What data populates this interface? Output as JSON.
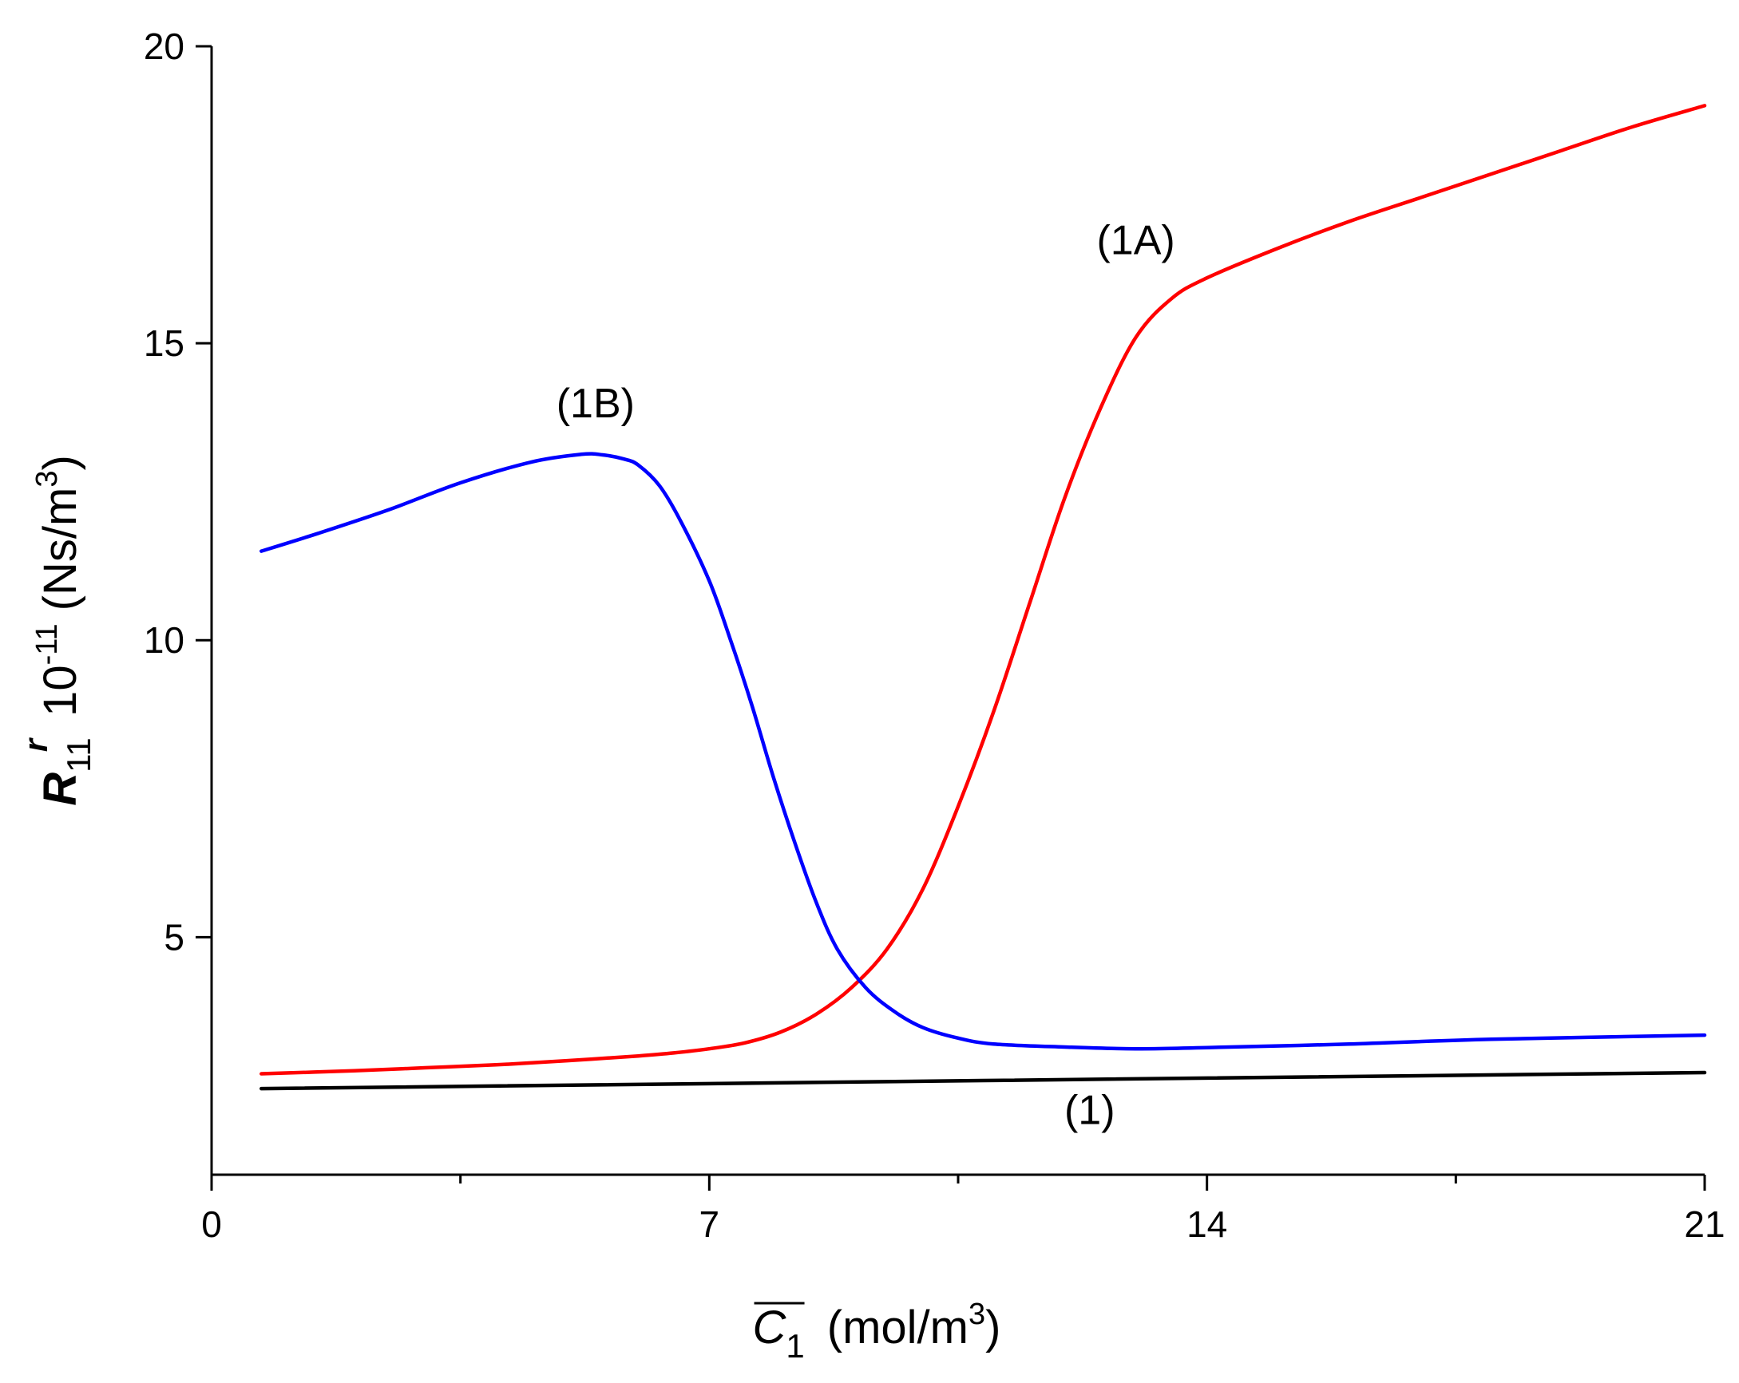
{
  "chart_data": {
    "type": "line",
    "title": "",
    "xlabel": {
      "symbol": "C",
      "subscript": "1",
      "unit_prefix": "(mol/m",
      "unit_power": "3",
      "unit_suffix": ")"
    },
    "ylabel": {
      "symbol": "R",
      "subscript": "11",
      "superscript": "r",
      "factor_base": "10",
      "factor_exp": "-11",
      "unit_prefix": "(Ns/m",
      "unit_power": "3",
      "unit_suffix": ")"
    },
    "xlim": [
      0,
      21
    ],
    "ylim": [
      1,
      20
    ],
    "x_ticks": [
      0,
      7,
      14,
      21
    ],
    "x_tick_labels": [
      "0",
      "7",
      "14",
      "21"
    ],
    "x_minor_ticks": [
      3.5,
      10.5,
      17.5
    ],
    "y_ticks": [
      5,
      10,
      15,
      20
    ],
    "y_tick_labels": [
      "5",
      "10",
      "15",
      "20"
    ],
    "grid": false,
    "series": [
      {
        "name": "(1A)",
        "color": "#ff0000",
        "x": [
          0.7,
          2,
          3,
          4,
          5,
          6,
          6.5,
          7,
          7.5,
          8,
          8.5,
          9,
          9.5,
          10,
          10.5,
          11,
          11.5,
          12,
          12.5,
          13,
          13.5,
          14,
          15,
          16,
          17,
          18,
          19,
          20,
          21
        ],
        "y": [
          2.7,
          2.75,
          2.8,
          2.85,
          2.92,
          3.0,
          3.05,
          3.12,
          3.22,
          3.4,
          3.7,
          4.15,
          4.8,
          5.8,
          7.2,
          8.8,
          10.6,
          12.4,
          13.9,
          15.1,
          15.75,
          16.1,
          16.6,
          17.05,
          17.45,
          17.85,
          18.25,
          18.65,
          19.0
        ]
      },
      {
        "name": "(1B)",
        "color": "#0000ff",
        "x": [
          0.7,
          1.5,
          2.5,
          3.5,
          4.5,
          5.2,
          5.5,
          5.8,
          6.0,
          6.3,
          6.6,
          7.0,
          7.3,
          7.6,
          7.9,
          8.2,
          8.5,
          8.8,
          9.2,
          9.6,
          10.0,
          10.5,
          11.0,
          12.0,
          13.0,
          14.0,
          16.0,
          18.0,
          21.0
        ],
        "y": [
          11.5,
          11.8,
          12.2,
          12.65,
          13.0,
          13.13,
          13.12,
          13.05,
          12.95,
          12.6,
          12.0,
          11.0,
          10.0,
          8.9,
          7.7,
          6.6,
          5.6,
          4.8,
          4.15,
          3.75,
          3.48,
          3.3,
          3.2,
          3.15,
          3.12,
          3.14,
          3.2,
          3.28,
          3.35
        ]
      },
      {
        "name": "(1)",
        "color": "#000000",
        "x": [
          0.7,
          21
        ],
        "y": [
          2.45,
          2.72
        ]
      }
    ],
    "annotations": [
      {
        "text": "(1A)",
        "series": "(1A)",
        "x": 13.0,
        "y": 16.5
      },
      {
        "text": "(1B)",
        "series": "(1B)",
        "x": 5.4,
        "y": 13.75
      },
      {
        "text": "(1)",
        "series": "(1)",
        "x": 12.35,
        "y": 1.85
      }
    ]
  }
}
